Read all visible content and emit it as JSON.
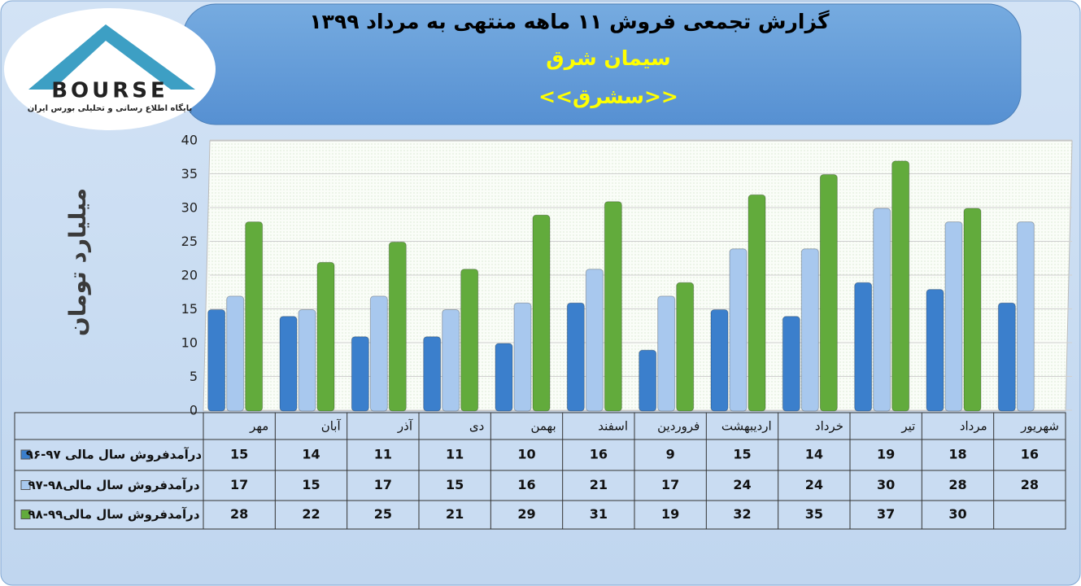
{
  "chart_data": {
    "type": "bar",
    "title": "گزارش تجمعی فروش ۱۱ ماهه منتهی به مرداد ۱۳۹۹",
    "subtitle": "سیمان شرق",
    "symbol": "<<سشرق>>",
    "logo_text": "BOURSE",
    "logo_tagline": "پایگاه اطلاع رسانی و تحلیلی بورس ایران",
    "y_label": "میلیارد تومان",
    "categories": [
      "مهر",
      "آبان",
      "آذر",
      "دی",
      "بهمن",
      "اسفند",
      "فروردین",
      "اردیبهشت",
      "خرداد",
      "تیر",
      "مرداد",
      "شهریور"
    ],
    "series": [
      {
        "name": "درآمدفروش سال مالی ۹۷-۹۶",
        "color": "#3b7fcc",
        "values": [
          15,
          14,
          11,
          11,
          10,
          16,
          9,
          15,
          14,
          19,
          18,
          16
        ]
      },
      {
        "name": "درآمدفروش سال مالی۹۸-۹۷",
        "color": "#a8c8ee",
        "values": [
          17,
          15,
          17,
          15,
          16,
          21,
          17,
          24,
          24,
          30,
          28,
          28
        ]
      },
      {
        "name": "درآمدفروش سال مالی۹۹-۹۸",
        "color": "#62ab3c",
        "values": [
          28,
          22,
          25,
          21,
          29,
          31,
          19,
          32,
          35,
          37,
          30,
          null
        ]
      }
    ],
    "ylim": [
      0,
      40
    ],
    "yticks": [
      0,
      5,
      10,
      15,
      20,
      25,
      30,
      35,
      40
    ],
    "grid": true
  }
}
